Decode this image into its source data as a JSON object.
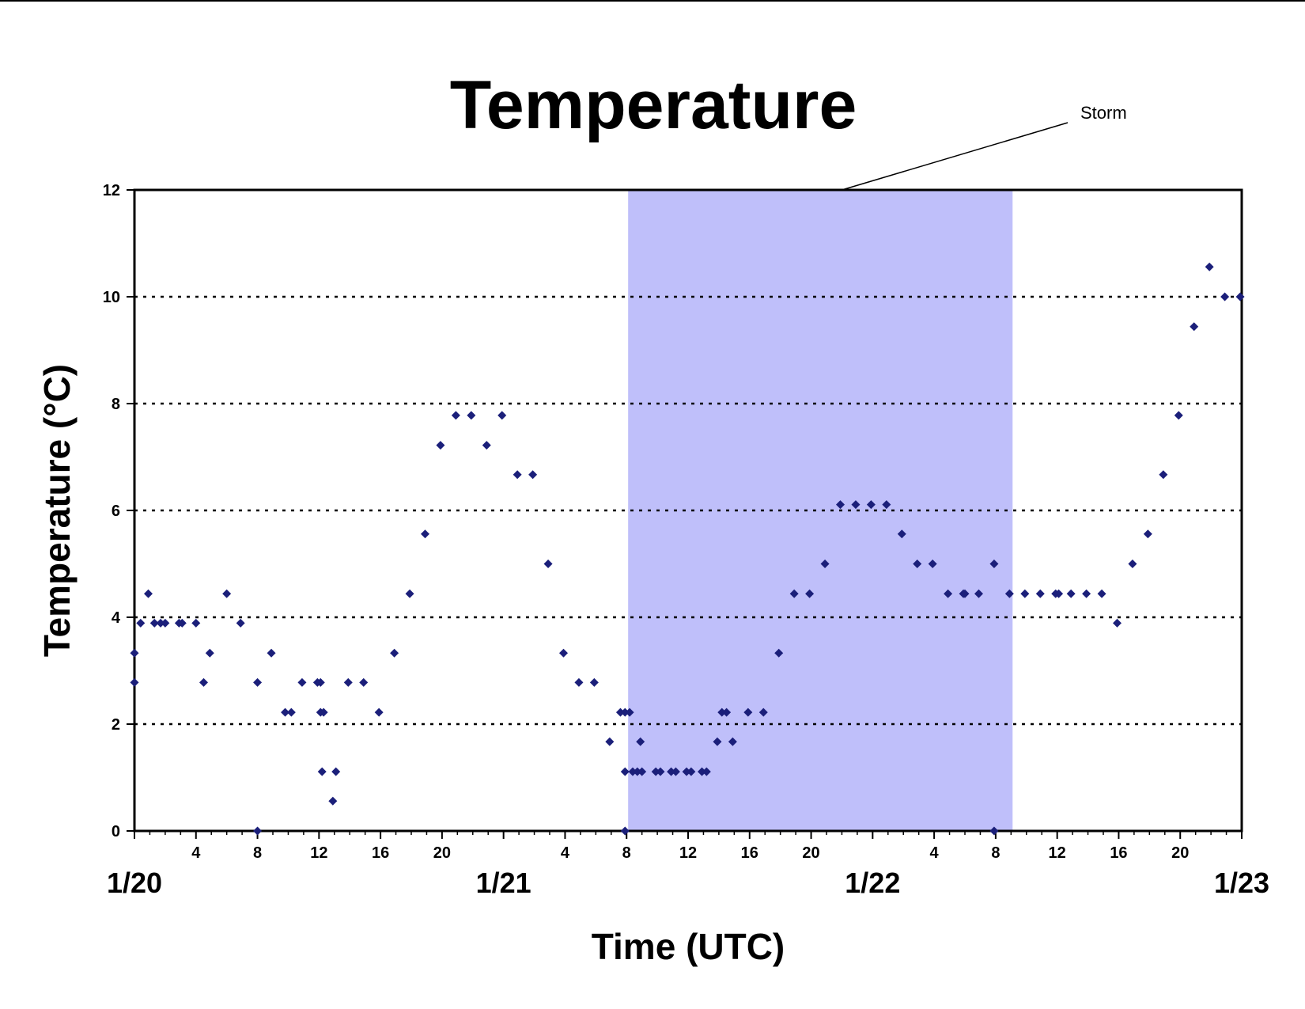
{
  "chart_data": {
    "type": "scatter",
    "title": "Temperature",
    "xlabel": "Time (UTC)",
    "ylabel": "Temperature (°C)",
    "ylim": [
      0,
      12
    ],
    "yticks": [
      "0",
      "2",
      "4",
      "6",
      "8",
      "10",
      "12"
    ],
    "x_range_hours": [
      0,
      72
    ],
    "hour_ticks": [
      {
        "hour": 4,
        "label": "4"
      },
      {
        "hour": 8,
        "label": "8"
      },
      {
        "hour": 12,
        "label": "12"
      },
      {
        "hour": 16,
        "label": "16"
      },
      {
        "hour": 20,
        "label": "20"
      },
      {
        "hour": 28,
        "label": "4"
      },
      {
        "hour": 32,
        "label": "8"
      },
      {
        "hour": 36,
        "label": "12"
      },
      {
        "hour": 40,
        "label": "16"
      },
      {
        "hour": 44,
        "label": "20"
      },
      {
        "hour": 52,
        "label": "4"
      },
      {
        "hour": 56,
        "label": "8"
      },
      {
        "hour": 60,
        "label": "12"
      },
      {
        "hour": 64,
        "label": "16"
      },
      {
        "hour": 68,
        "label": "20"
      }
    ],
    "date_ticks": [
      {
        "hour": 0,
        "label": "1/20"
      },
      {
        "hour": 24,
        "label": "1/21"
      },
      {
        "hour": 48,
        "label": "1/22"
      },
      {
        "hour": 72,
        "label": "1/23"
      }
    ],
    "gridlines": "horizontal-dotted",
    "storm_window": {
      "start_hour": 32.1,
      "end_hour": 57.1,
      "color": "#bfbffa"
    },
    "annotation": {
      "text": "Storm",
      "target_hour": 46.0,
      "target_y": 12
    },
    "marker_color": "#1b1f7a",
    "points": [
      [
        0,
        3.33
      ],
      [
        0,
        2.78
      ],
      [
        0.4,
        3.89
      ],
      [
        0.9,
        4.44
      ],
      [
        1.3,
        3.89
      ],
      [
        1.7,
        3.89
      ],
      [
        2,
        3.89
      ],
      [
        2.9,
        3.89
      ],
      [
        3.1,
        3.89
      ],
      [
        4,
        3.89
      ],
      [
        4.5,
        2.78
      ],
      [
        4.9,
        3.33
      ],
      [
        6,
        4.44
      ],
      [
        6.9,
        3.89
      ],
      [
        8,
        2.78
      ],
      [
        8,
        0
      ],
      [
        8.9,
        3.33
      ],
      [
        9.8,
        2.22
      ],
      [
        10.2,
        2.22
      ],
      [
        10.9,
        2.78
      ],
      [
        11.9,
        2.78
      ],
      [
        12.1,
        2.78
      ],
      [
        12.1,
        2.22
      ],
      [
        12.3,
        2.22
      ],
      [
        12.2,
        1.11
      ],
      [
        12.9,
        0.56
      ],
      [
        13.1,
        1.11
      ],
      [
        13.9,
        2.78
      ],
      [
        14.9,
        2.78
      ],
      [
        15.9,
        2.22
      ],
      [
        16.9,
        3.33
      ],
      [
        17.9,
        4.44
      ],
      [
        18.9,
        5.56
      ],
      [
        19.9,
        7.22
      ],
      [
        20.9,
        7.78
      ],
      [
        21.9,
        7.78
      ],
      [
        22.9,
        7.22
      ],
      [
        23.9,
        7.78
      ],
      [
        24.9,
        6.67
      ],
      [
        25.9,
        6.67
      ],
      [
        26.9,
        5.0
      ],
      [
        27.9,
        3.33
      ],
      [
        28.9,
        2.78
      ],
      [
        29.9,
        2.78
      ],
      [
        30.9,
        1.67
      ],
      [
        31.6,
        2.22
      ],
      [
        31.9,
        2.22
      ],
      [
        32.2,
        2.22
      ],
      [
        31.9,
        1.11
      ],
      [
        31.9,
        0
      ],
      [
        32.4,
        1.11
      ],
      [
        32.7,
        1.11
      ],
      [
        33,
        1.11
      ],
      [
        32.9,
        1.67
      ],
      [
        33.9,
        1.11
      ],
      [
        34.2,
        1.11
      ],
      [
        34.9,
        1.11
      ],
      [
        35.2,
        1.11
      ],
      [
        35.9,
        1.11
      ],
      [
        36.2,
        1.11
      ],
      [
        36.9,
        1.11
      ],
      [
        37.2,
        1.11
      ],
      [
        37.9,
        1.67
      ],
      [
        38.2,
        2.22
      ],
      [
        38.5,
        2.22
      ],
      [
        38.9,
        1.67
      ],
      [
        39.9,
        2.22
      ],
      [
        40.9,
        2.22
      ],
      [
        41.9,
        3.33
      ],
      [
        42.9,
        4.44
      ],
      [
        43.9,
        4.44
      ],
      [
        44.9,
        5.0
      ],
      [
        45.9,
        6.11
      ],
      [
        46.9,
        6.11
      ],
      [
        47.9,
        6.11
      ],
      [
        48.9,
        6.11
      ],
      [
        49.9,
        5.56
      ],
      [
        50.9,
        5.0
      ],
      [
        51.9,
        5.0
      ],
      [
        52.9,
        4.44
      ],
      [
        53.9,
        4.44
      ],
      [
        54,
        4.44
      ],
      [
        54.9,
        4.44
      ],
      [
        55.9,
        5.0
      ],
      [
        55.9,
        0
      ],
      [
        56.9,
        4.44
      ],
      [
        57.9,
        4.44
      ],
      [
        58.9,
        4.44
      ],
      [
        59.9,
        4.44
      ],
      [
        60.1,
        4.44
      ],
      [
        60.9,
        4.44
      ],
      [
        61.9,
        4.44
      ],
      [
        62.9,
        4.44
      ],
      [
        63.9,
        3.89
      ],
      [
        64.9,
        5.0
      ],
      [
        65.9,
        5.56
      ],
      [
        66.9,
        6.67
      ],
      [
        67.9,
        7.78
      ],
      [
        68.9,
        9.44
      ],
      [
        69.9,
        10.56
      ],
      [
        70.9,
        10.0
      ],
      [
        71.9,
        10.0
      ]
    ]
  }
}
